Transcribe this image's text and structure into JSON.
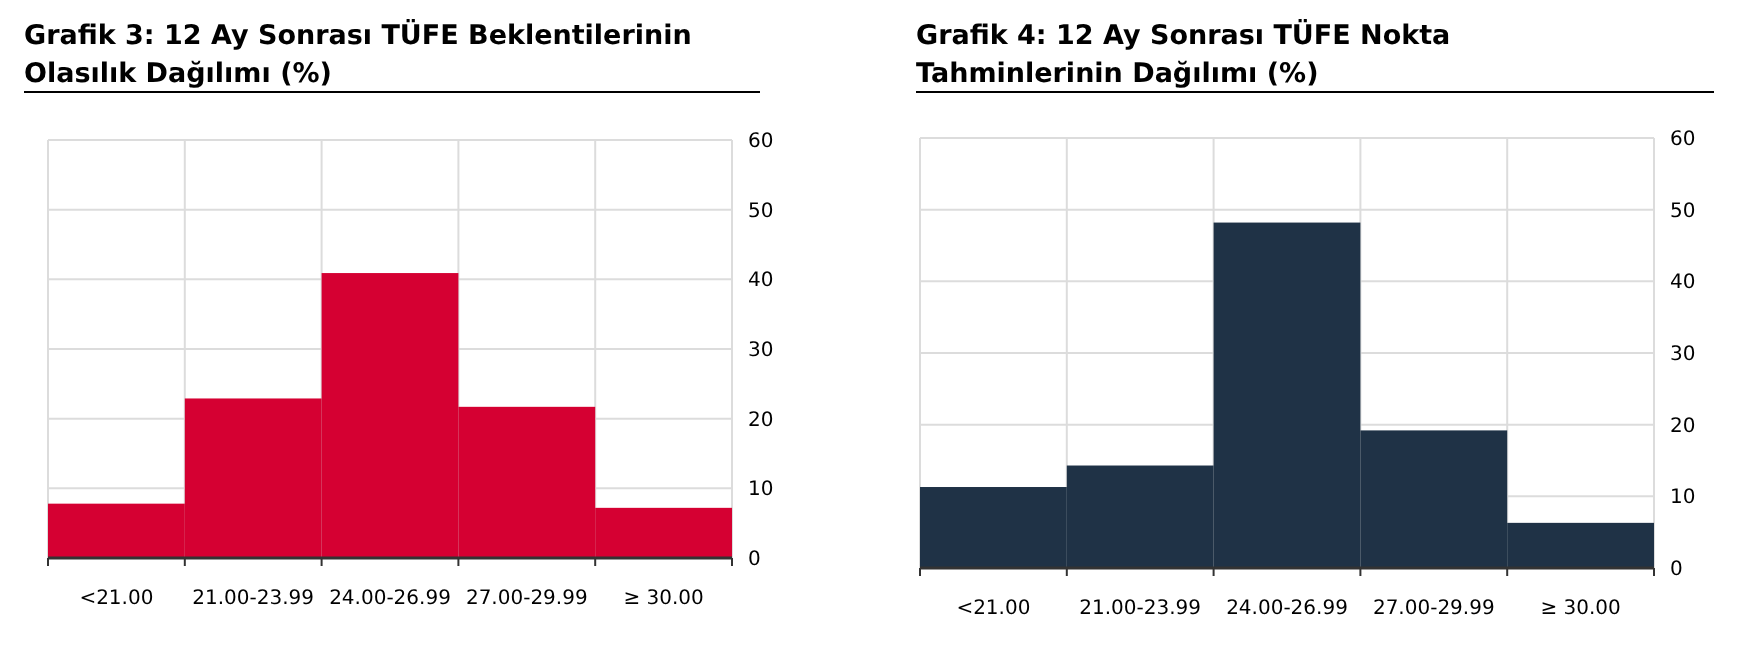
{
  "chart_data": [
    {
      "type": "bar",
      "title": "Grafik 3: 12 Ay Sonrası TÜFE Beklentilerinin Olasılık Dağılımı (%)",
      "categories": [
        "<21.00",
        "21.00-23.99",
        "24.00-26.99",
        "27.00-29.99",
        "≥ 30.00"
      ],
      "values": [
        7.8,
        22.9,
        40.9,
        21.7,
        7.2
      ],
      "color": "#d50032",
      "ylim": [
        0,
        60
      ],
      "yticks": [
        0,
        10,
        20,
        30,
        40,
        50,
        60
      ],
      "grid": true
    },
    {
      "type": "bar",
      "title": "Grafik 4: 12 Ay Sonrası TÜFE Nokta Tahminlerinin Dağılımı (%)",
      "categories": [
        "<21.00",
        "21.00-23.99",
        "24.00-26.99",
        "27.00-29.99",
        "≥ 30.00"
      ],
      "values": [
        11.3,
        14.3,
        48.2,
        19.2,
        6.3
      ],
      "color": "#1f3246",
      "ylim": [
        0,
        60
      ],
      "yticks": [
        0,
        10,
        20,
        30,
        40,
        50,
        60
      ],
      "grid": true
    }
  ]
}
